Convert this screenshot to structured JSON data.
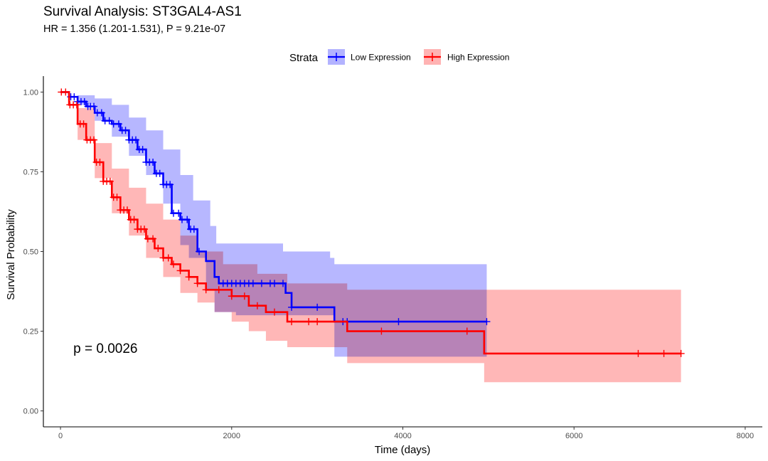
{
  "chart_data": {
    "type": "line",
    "title": "Survival Analysis: ST3GAL4-AS1",
    "subtitle": "HR = 1.356 (1.201-1.531), P = 9.21e-07",
    "xlabel": "Time (days)",
    "ylabel": "Survival Probability",
    "xlim": [
      -200,
      8200
    ],
    "ylim": [
      -0.05,
      1.05
    ],
    "x_ticks": [
      0,
      2000,
      4000,
      6000,
      8000
    ],
    "x_tick_labels": [
      "0",
      "2000",
      "4000",
      "6000",
      "8000"
    ],
    "y_ticks": [
      0,
      0.25,
      0.5,
      0.75,
      1.0
    ],
    "y_tick_labels": [
      "0.00",
      "0.25",
      "0.50",
      "0.75",
      "1.00"
    ],
    "legend": {
      "title": "Strata",
      "position": "top",
      "entries": [
        "Low Expression",
        "High Expression"
      ]
    },
    "annotation": {
      "text": "p = 0.0026",
      "x": 150,
      "y": 0.195
    },
    "series": [
      {
        "name": "Low Expression",
        "color": "#0000ff",
        "ci_fill": "#b3b3ff",
        "steps": [
          [
            0,
            1.0
          ],
          [
            100,
            0.985
          ],
          [
            200,
            0.97
          ],
          [
            300,
            0.955
          ],
          [
            400,
            0.935
          ],
          [
            500,
            0.91
          ],
          [
            600,
            0.9
          ],
          [
            700,
            0.88
          ],
          [
            800,
            0.85
          ],
          [
            900,
            0.82
          ],
          [
            1000,
            0.78
          ],
          [
            1100,
            0.745
          ],
          [
            1200,
            0.71
          ],
          [
            1300,
            0.62
          ],
          [
            1400,
            0.6
          ],
          [
            1500,
            0.57
          ],
          [
            1600,
            0.5
          ],
          [
            1700,
            0.47
          ],
          [
            1800,
            0.42
          ],
          [
            1850,
            0.4
          ],
          [
            2630,
            0.37
          ],
          [
            2700,
            0.325
          ],
          [
            3200,
            0.28
          ],
          [
            4980,
            0.28
          ]
        ],
        "ci_upper": [
          [
            0,
            1.0
          ],
          [
            200,
            0.99
          ],
          [
            400,
            0.98
          ],
          [
            600,
            0.96
          ],
          [
            800,
            0.92
          ],
          [
            1000,
            0.88
          ],
          [
            1200,
            0.82
          ],
          [
            1400,
            0.74
          ],
          [
            1550,
            0.66
          ],
          [
            1750,
            0.58
          ],
          [
            1820,
            0.525
          ],
          [
            2600,
            0.5
          ],
          [
            3150,
            0.48
          ],
          [
            3200,
            0.46
          ],
          [
            4980,
            0.46
          ]
        ],
        "ci_lower": [
          [
            0,
            1.0
          ],
          [
            200,
            0.96
          ],
          [
            400,
            0.91
          ],
          [
            600,
            0.86
          ],
          [
            800,
            0.8
          ],
          [
            1000,
            0.74
          ],
          [
            1200,
            0.65
          ],
          [
            1400,
            0.52
          ],
          [
            1500,
            0.48
          ],
          [
            1700,
            0.38
          ],
          [
            1800,
            0.31
          ],
          [
            2050,
            0.3
          ],
          [
            3200,
            0.17
          ],
          [
            3350,
            0.17
          ]
        ],
        "censor_times": [
          120,
          160,
          200,
          240,
          280,
          320,
          350,
          390,
          430,
          480,
          520,
          570,
          620,
          680,
          720,
          760,
          800,
          840,
          880,
          920,
          960,
          1000,
          1040,
          1080,
          1120,
          1160,
          1200,
          1240,
          1280,
          1320,
          1380,
          1420,
          1480,
          1520,
          1560,
          1620,
          1900,
          1950,
          2000,
          2050,
          2100,
          2150,
          2200,
          2250,
          2350,
          2450,
          2500,
          2600,
          2700,
          3000,
          3300,
          3350,
          3950,
          4980
        ]
      },
      {
        "name": "High Expression",
        "color": "#ff0000",
        "ci_fill": "#ffb3b3",
        "steps": [
          [
            0,
            1.0
          ],
          [
            100,
            0.96
          ],
          [
            200,
            0.9
          ],
          [
            300,
            0.85
          ],
          [
            400,
            0.78
          ],
          [
            500,
            0.72
          ],
          [
            600,
            0.67
          ],
          [
            700,
            0.63
          ],
          [
            800,
            0.6
          ],
          [
            900,
            0.57
          ],
          [
            1000,
            0.54
          ],
          [
            1100,
            0.51
          ],
          [
            1200,
            0.48
          ],
          [
            1300,
            0.46
          ],
          [
            1400,
            0.44
          ],
          [
            1500,
            0.42
          ],
          [
            1600,
            0.4
          ],
          [
            1700,
            0.38
          ],
          [
            2000,
            0.36
          ],
          [
            2200,
            0.33
          ],
          [
            2400,
            0.31
          ],
          [
            2650,
            0.28
          ],
          [
            3350,
            0.25
          ],
          [
            4950,
            0.18
          ],
          [
            7250,
            0.18
          ]
        ],
        "ci_upper": [
          [
            0,
            1.0
          ],
          [
            200,
            0.95
          ],
          [
            400,
            0.84
          ],
          [
            600,
            0.76
          ],
          [
            800,
            0.7
          ],
          [
            1000,
            0.65
          ],
          [
            1200,
            0.6
          ],
          [
            1400,
            0.55
          ],
          [
            1600,
            0.5
          ],
          [
            1900,
            0.46
          ],
          [
            2300,
            0.43
          ],
          [
            2650,
            0.4
          ],
          [
            3350,
            0.38
          ],
          [
            4950,
            0.38
          ],
          [
            7250,
            0.38
          ]
        ],
        "ci_lower": [
          [
            0,
            1.0
          ],
          [
            200,
            0.85
          ],
          [
            400,
            0.73
          ],
          [
            600,
            0.62
          ],
          [
            800,
            0.55
          ],
          [
            1000,
            0.48
          ],
          [
            1200,
            0.42
          ],
          [
            1400,
            0.37
          ],
          [
            1600,
            0.34
          ],
          [
            1800,
            0.31
          ],
          [
            2000,
            0.28
          ],
          [
            2200,
            0.25
          ],
          [
            2400,
            0.22
          ],
          [
            2650,
            0.2
          ],
          [
            3350,
            0.15
          ],
          [
            4950,
            0.09
          ],
          [
            7250,
            0.09
          ]
        ],
        "censor_times": [
          10,
          60,
          110,
          150,
          190,
          230,
          270,
          310,
          350,
          390,
          420,
          460,
          500,
          540,
          580,
          620,
          660,
          700,
          740,
          780,
          820,
          860,
          900,
          940,
          980,
          1020,
          1080,
          1140,
          1200,
          1260,
          1320,
          1400,
          1500,
          1600,
          1700,
          1850,
          2000,
          2150,
          2300,
          2500,
          2700,
          2900,
          3000,
          3750,
          4750,
          6750,
          7050,
          7250
        ]
      }
    ]
  }
}
